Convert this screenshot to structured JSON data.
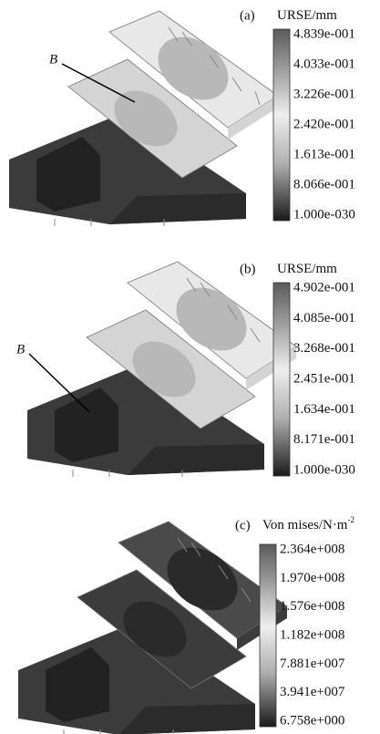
{
  "panels": [
    {
      "label": "(a)",
      "unit": "URSE/mm",
      "annotation": "B",
      "ticks": [
        "4.839e-001",
        "4.033e-001",
        "3.226e-001",
        "2.420e-001",
        "1.613e-001",
        "8.066e-001",
        "1.000e-030"
      ]
    },
    {
      "label": "(b)",
      "unit": "URSE/mm",
      "annotation": "B",
      "ticks": [
        "4.902e-001",
        "4.085e-001",
        "3.268e-001",
        "2.451e-001",
        "1.634e-001",
        "8.171e-001",
        "1.000e-030"
      ]
    },
    {
      "label": "(c)",
      "unit": "Von mises/N·m",
      "unit_superscript": "-2",
      "ticks": [
        "2.364e+008",
        "1.970e+008",
        "1.576e+008",
        "1.182e+008",
        "7.881e+007",
        "3.941e+007",
        "6.758e+000"
      ]
    }
  ]
}
